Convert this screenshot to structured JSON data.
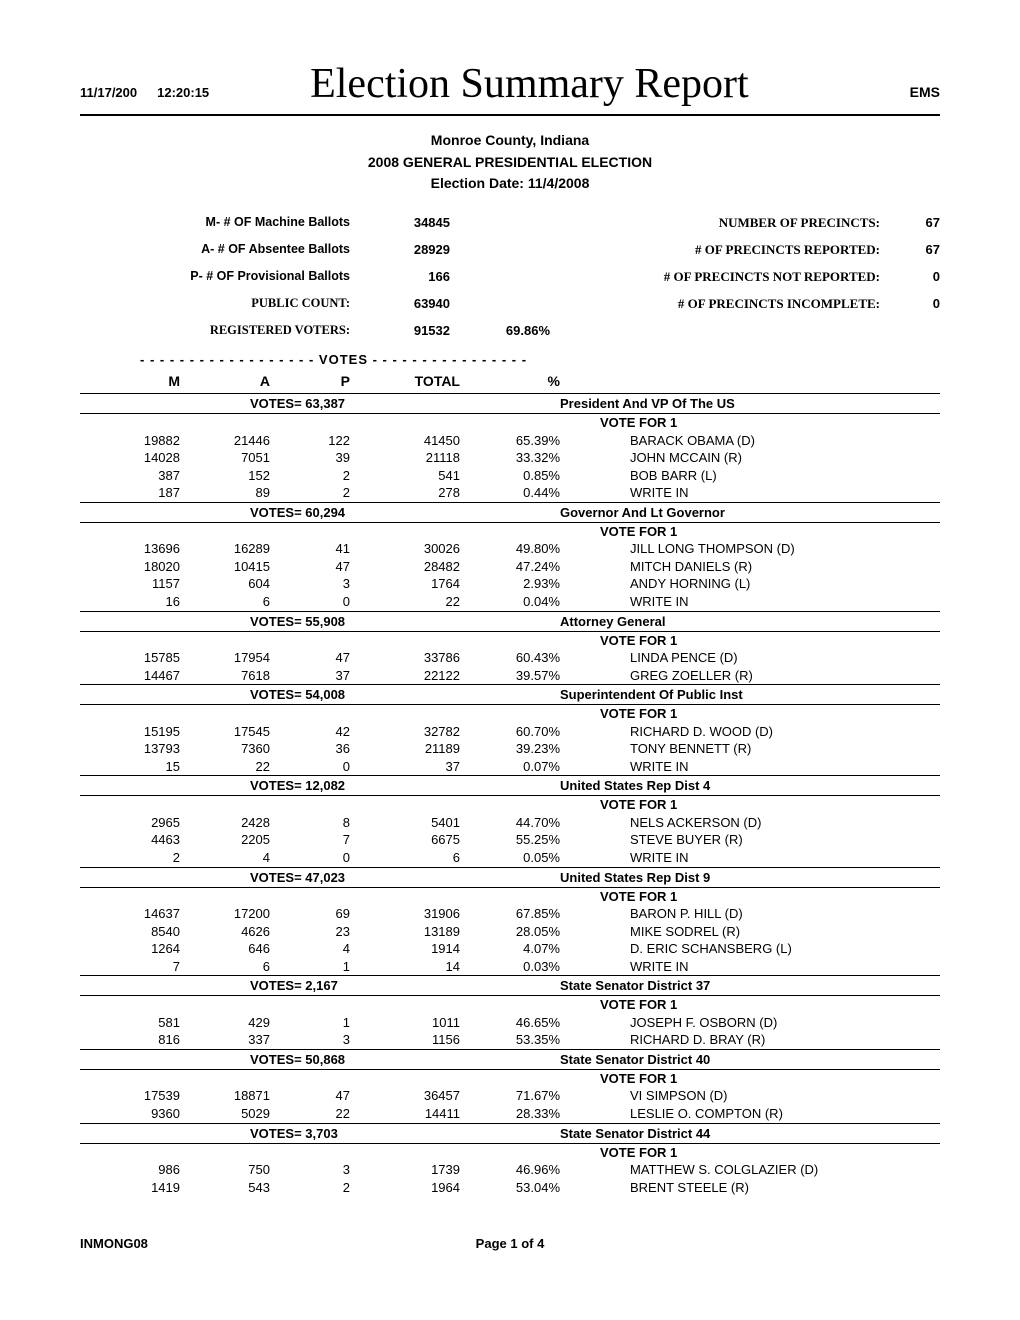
{
  "header": {
    "date": "11/17/200",
    "time": "12:20:15",
    "title": "Election Summary Report",
    "ems": "EMS"
  },
  "subheader": {
    "county": "Monroe County, Indiana",
    "election": "2008 GENERAL PRESIDENTIAL ELECTION",
    "election_date": "Election Date:  11/4/2008"
  },
  "stats_left": [
    {
      "label": "M- # OF Machine Ballots",
      "value": "34845"
    },
    {
      "label": "A- # OF Absentee Ballots",
      "value": "28929"
    },
    {
      "label": "P- # OF Provisional Ballots",
      "value": "166"
    },
    {
      "label": "PUBLIC COUNT:",
      "value": "63940",
      "serif": true
    },
    {
      "label": "REGISTERED VOTERS:",
      "value": "91532",
      "serif": true,
      "pct": "69.86%"
    }
  ],
  "stats_right": [
    {
      "label": "NUMBER OF PRECINCTS:",
      "value": "67"
    },
    {
      "label": "# OF PRECINCTS REPORTED:",
      "value": "67"
    },
    {
      "label": "# OF PRECINCTS NOT REPORTED:",
      "value": "0"
    },
    {
      "label": "# OF PRECINCTS INCOMPLETE:",
      "value": "0"
    }
  ],
  "votes_label": "- - - - - - - - - - - - - - - - - - VOTES - - - - - - - - - - - - - - - -",
  "col_headers": {
    "m": "M",
    "a": "A",
    "p": "P",
    "total": "TOTAL",
    "pct": "%"
  },
  "vote_for": "VOTE FOR  1",
  "races": [
    {
      "votes": "VOTES=  63,387",
      "title": "President And VP Of The US",
      "candidates": [
        {
          "m": "19882",
          "a": "21446",
          "p": "122",
          "total": "41450",
          "pct": "65.39%",
          "name": "BARACK OBAMA (D)"
        },
        {
          "m": "14028",
          "a": "7051",
          "p": "39",
          "total": "21118",
          "pct": "33.32%",
          "name": "JOHN MCCAIN (R)"
        },
        {
          "m": "387",
          "a": "152",
          "p": "2",
          "total": "541",
          "pct": "0.85%",
          "name": "BOB BARR (L)"
        },
        {
          "m": "187",
          "a": "89",
          "p": "2",
          "total": "278",
          "pct": "0.44%",
          "name": "WRITE IN"
        }
      ]
    },
    {
      "votes": "VOTES=  60,294",
      "title": "Governor And Lt Governor",
      "candidates": [
        {
          "m": "13696",
          "a": "16289",
          "p": "41",
          "total": "30026",
          "pct": "49.80%",
          "name": "JILL LONG THOMPSON (D)"
        },
        {
          "m": "18020",
          "a": "10415",
          "p": "47",
          "total": "28482",
          "pct": "47.24%",
          "name": "MITCH DANIELS (R)"
        },
        {
          "m": "1157",
          "a": "604",
          "p": "3",
          "total": "1764",
          "pct": "2.93%",
          "name": "ANDY HORNING (L)"
        },
        {
          "m": "16",
          "a": "6",
          "p": "0",
          "total": "22",
          "pct": "0.04%",
          "name": "WRITE IN"
        }
      ]
    },
    {
      "votes": "VOTES=  55,908",
      "title": "Attorney General",
      "candidates": [
        {
          "m": "15785",
          "a": "17954",
          "p": "47",
          "total": "33786",
          "pct": "60.43%",
          "name": "LINDA PENCE (D)"
        },
        {
          "m": "14467",
          "a": "7618",
          "p": "37",
          "total": "22122",
          "pct": "39.57%",
          "name": "GREG ZOELLER (R)"
        }
      ]
    },
    {
      "votes": "VOTES=  54,008",
      "title": "Superintendent Of Public Inst",
      "candidates": [
        {
          "m": "15195",
          "a": "17545",
          "p": "42",
          "total": "32782",
          "pct": "60.70%",
          "name": "RICHARD D. WOOD (D)"
        },
        {
          "m": "13793",
          "a": "7360",
          "p": "36",
          "total": "21189",
          "pct": "39.23%",
          "name": "TONY BENNETT (R)"
        },
        {
          "m": "15",
          "a": "22",
          "p": "0",
          "total": "37",
          "pct": "0.07%",
          "name": "WRITE IN"
        }
      ]
    },
    {
      "votes": "VOTES=  12,082",
      "title": "United States Rep Dist 4",
      "candidates": [
        {
          "m": "2965",
          "a": "2428",
          "p": "8",
          "total": "5401",
          "pct": "44.70%",
          "name": "NELS ACKERSON (D)"
        },
        {
          "m": "4463",
          "a": "2205",
          "p": "7",
          "total": "6675",
          "pct": "55.25%",
          "name": "STEVE BUYER (R)"
        },
        {
          "m": "2",
          "a": "4",
          "p": "0",
          "total": "6",
          "pct": "0.05%",
          "name": "WRITE IN"
        }
      ]
    },
    {
      "votes": "VOTES=  47,023",
      "title": "United States Rep Dist 9",
      "candidates": [
        {
          "m": "14637",
          "a": "17200",
          "p": "69",
          "total": "31906",
          "pct": "67.85%",
          "name": "BARON P. HILL (D)"
        },
        {
          "m": "8540",
          "a": "4626",
          "p": "23",
          "total": "13189",
          "pct": "28.05%",
          "name": "MIKE SODREL (R)"
        },
        {
          "m": "1264",
          "a": "646",
          "p": "4",
          "total": "1914",
          "pct": "4.07%",
          "name": "D. ERIC SCHANSBERG (L)"
        },
        {
          "m": "7",
          "a": "6",
          "p": "1",
          "total": "14",
          "pct": "0.03%",
          "name": "WRITE IN"
        }
      ]
    },
    {
      "votes": "VOTES=  2,167",
      "title": "State Senator District 37",
      "candidates": [
        {
          "m": "581",
          "a": "429",
          "p": "1",
          "total": "1011",
          "pct": "46.65%",
          "name": "JOSEPH F. OSBORN (D)"
        },
        {
          "m": "816",
          "a": "337",
          "p": "3",
          "total": "1156",
          "pct": "53.35%",
          "name": "RICHARD D. BRAY (R)"
        }
      ]
    },
    {
      "votes": "VOTES=  50,868",
      "title": "State Senator District 40",
      "candidates": [
        {
          "m": "17539",
          "a": "18871",
          "p": "47",
          "total": "36457",
          "pct": "71.67%",
          "name": "VI SIMPSON (D)"
        },
        {
          "m": "9360",
          "a": "5029",
          "p": "22",
          "total": "14411",
          "pct": "28.33%",
          "name": "LESLIE O. COMPTON (R)"
        }
      ]
    },
    {
      "votes": "VOTES=  3,703",
      "title": "State Senator District 44",
      "candidates": [
        {
          "m": "986",
          "a": "750",
          "p": "3",
          "total": "1739",
          "pct": "46.96%",
          "name": "MATTHEW S. COLGLAZIER (D)"
        },
        {
          "m": "1419",
          "a": "543",
          "p": "2",
          "total": "1964",
          "pct": "53.04%",
          "name": "BRENT STEELE (R)"
        }
      ]
    }
  ],
  "footer": {
    "left": "INMONG08",
    "center": "Page 1 of 4"
  }
}
